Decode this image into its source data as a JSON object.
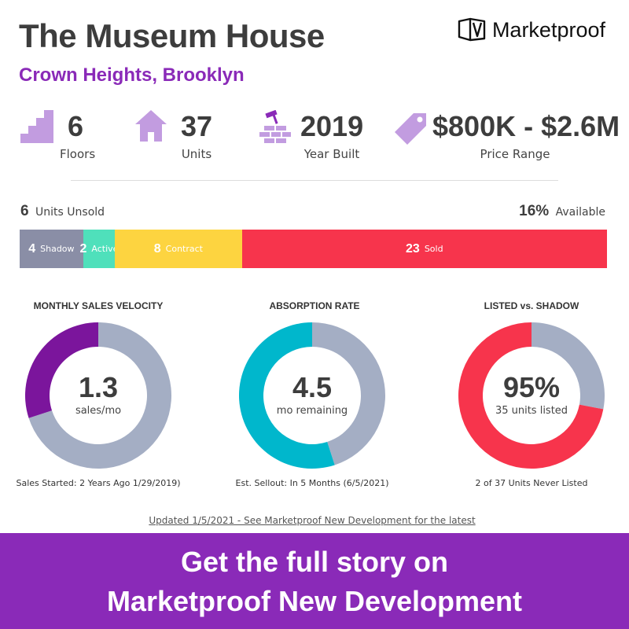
{
  "header": {
    "title": "The Museum House",
    "subtitle": "Crown Heights, Brooklyn",
    "brand": "Marketproof"
  },
  "stats": {
    "floors": {
      "value": "6",
      "label": "Floors",
      "icon": "stairs-icon"
    },
    "units": {
      "value": "37",
      "label": "Units",
      "icon": "house-icon"
    },
    "year": {
      "value": "2019",
      "label": "Year Built",
      "icon": "brick-hammer-icon"
    },
    "price": {
      "value": "$800K - $2.6M",
      "label": "Price Range",
      "icon": "price-tag-icon"
    }
  },
  "availability": {
    "unsold_count": "6",
    "unsold_label": "Units Unsold",
    "available_pct": "16%",
    "available_label": "Available"
  },
  "colors": {
    "accent": "#8a2ab8",
    "icon": "#c29ce0",
    "shadow": "#8a8ea6",
    "active": "#4fe0bb",
    "contract": "#fdd440",
    "sold": "#f7344c",
    "donut_gray": "#a4aec4",
    "velocity": "#7b159c",
    "absorption": "#00b7cc"
  },
  "chart_data": [
    {
      "type": "bar",
      "orientation": "horizontal-stacked",
      "categories": [
        "Shadow",
        "Active",
        "Contract",
        "Sold"
      ],
      "values": [
        4,
        2,
        8,
        23
      ],
      "colors": [
        "#8a8ea6",
        "#4fe0bb",
        "#fdd440",
        "#f7344c"
      ]
    },
    {
      "type": "pie",
      "title": "MONTHLY SALES VELOCITY",
      "center_value": "1.3",
      "center_label": "sales/mo",
      "footnote": "Sales Started: 2 Years Ago 1/29/2019)",
      "fraction": 0.3,
      "colors": [
        "#7b159c",
        "#a4aec4"
      ]
    },
    {
      "type": "pie",
      "title": "ABSORPTION RATE",
      "center_value": "4.5",
      "center_label": "mo remaining",
      "footnote": "Est. Sellout: In 5 Months (6/5/2021)",
      "fraction": 0.55,
      "colors": [
        "#00b7cc",
        "#a4aec4"
      ]
    },
    {
      "type": "pie",
      "title": "LISTED vs. SHADOW",
      "center_value": "95%",
      "center_label": "35 units listed",
      "footnote": "2 of 37 Units Never Listed",
      "fraction": 0.72,
      "colors": [
        "#f7344c",
        "#a4aec4"
      ]
    }
  ],
  "updated": "Updated 1/5/2021 - See Marketproof New Development for the latest",
  "banner": {
    "line1": "Get the full story on",
    "line2": "Marketproof New Development"
  }
}
